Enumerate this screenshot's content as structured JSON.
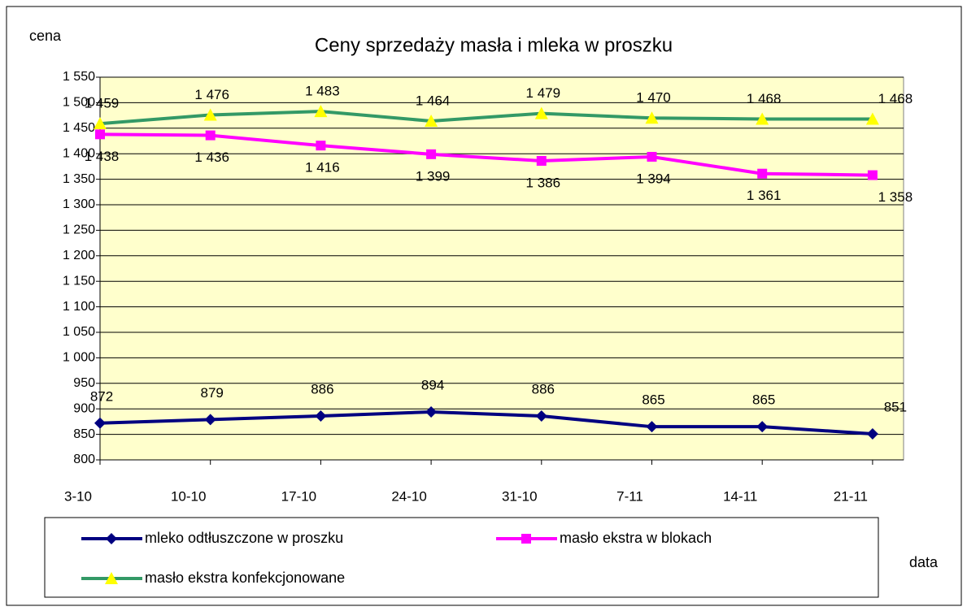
{
  "chart_data": {
    "type": "line",
    "title": "Ceny sprzedaży masła i mleka w proszku",
    "y_label": "cena",
    "x_label": "data",
    "categories": [
      "3-10",
      "10-10",
      "17-10",
      "24-10",
      "31-10",
      "7-11",
      "14-11",
      "21-11"
    ],
    "series": [
      {
        "name": "mleko odtłuszczone w proszku",
        "color": "#000080",
        "marker": "diamond",
        "values": [
          872,
          879,
          886,
          894,
          886,
          865,
          865,
          851
        ]
      },
      {
        "name": "masło ekstra w blokach",
        "color": "#ff00ff",
        "marker": "square",
        "values": [
          1438,
          1436,
          1416,
          1399,
          1386,
          1394,
          1361,
          1358
        ],
        "value_labels": [
          "1 438",
          "1 436",
          "1 416",
          "1 399",
          "1 386",
          "1 394",
          "1 361",
          "1 358"
        ]
      },
      {
        "name": "masło ekstra konfekcjonowane",
        "color": "#339966",
        "marker": "triangle",
        "marker_color": "#ffff00",
        "values": [
          1459,
          1476,
          1483,
          1464,
          1479,
          1470,
          1468,
          1468
        ],
        "value_labels": [
          "1 459",
          "1 476",
          "1 483",
          "1 464",
          "1 479",
          "1 470",
          "1 468",
          "1 468"
        ]
      }
    ],
    "ylim": [
      800,
      1550
    ],
    "yticks": [
      800,
      850,
      900,
      950,
      {
        "value": 1000,
        "label": "1 000"
      },
      {
        "value": 1050,
        "label": "1 050"
      },
      {
        "value": 1100,
        "label": "1 100"
      },
      {
        "value": 1150,
        "label": "1 150"
      },
      {
        "value": 1200,
        "label": "1 200"
      },
      {
        "value": 1250,
        "label": "1 250"
      },
      {
        "value": 1300,
        "label": "1 300"
      },
      {
        "value": 1350,
        "label": "1 350"
      },
      {
        "value": 1400,
        "label": "1 400"
      },
      {
        "value": 1450,
        "label": "1 450"
      },
      {
        "value": 1500,
        "label": "1 500"
      },
      {
        "value": 1550,
        "label": "1 550"
      }
    ],
    "grid": true,
    "legend": "bottom"
  }
}
